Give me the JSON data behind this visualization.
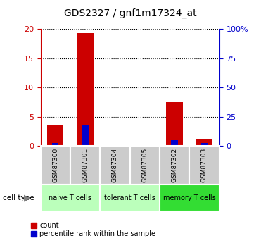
{
  "title": "GDS2327 / gnf1m17324_at",
  "samples": [
    "GSM87300",
    "GSM87301",
    "GSM87304",
    "GSM87305",
    "GSM87302",
    "GSM87303"
  ],
  "count_values": [
    3.5,
    19.3,
    0.08,
    0.08,
    7.5,
    1.15
  ],
  "percentile_values": [
    2.5,
    17.5,
    0.4,
    0.4,
    5.0,
    2.5
  ],
  "left_ylim": [
    0,
    20
  ],
  "right_ylim": [
    0,
    100
  ],
  "left_yticks": [
    0,
    5,
    10,
    15,
    20
  ],
  "right_yticks": [
    0,
    25,
    50,
    75,
    100
  ],
  "right_yticklabels": [
    "0",
    "25",
    "50",
    "75",
    "100%"
  ],
  "count_color": "#cc0000",
  "percentile_color": "#0000cc",
  "bar_width": 0.55,
  "pct_bar_width": 0.22,
  "groups": [
    {
      "label": "naive T cells",
      "start": 0,
      "end": 2,
      "color": "#bbffbb"
    },
    {
      "label": "tolerant T cells",
      "start": 2,
      "end": 4,
      "color": "#bbffbb"
    },
    {
      "label": "memory T cells",
      "start": 4,
      "end": 6,
      "color": "#33dd33"
    }
  ],
  "cell_type_label": "cell type",
  "legend_count": "count",
  "legend_percentile": "percentile rank within the sample",
  "count_color_legend": "#cc0000",
  "percentile_color_legend": "#0000cc",
  "left_tick_color": "#cc0000",
  "right_tick_color": "#0000cc",
  "sample_bg_color": "#cccccc",
  "grid_linestyle": "dotted",
  "title_fontsize": 10
}
